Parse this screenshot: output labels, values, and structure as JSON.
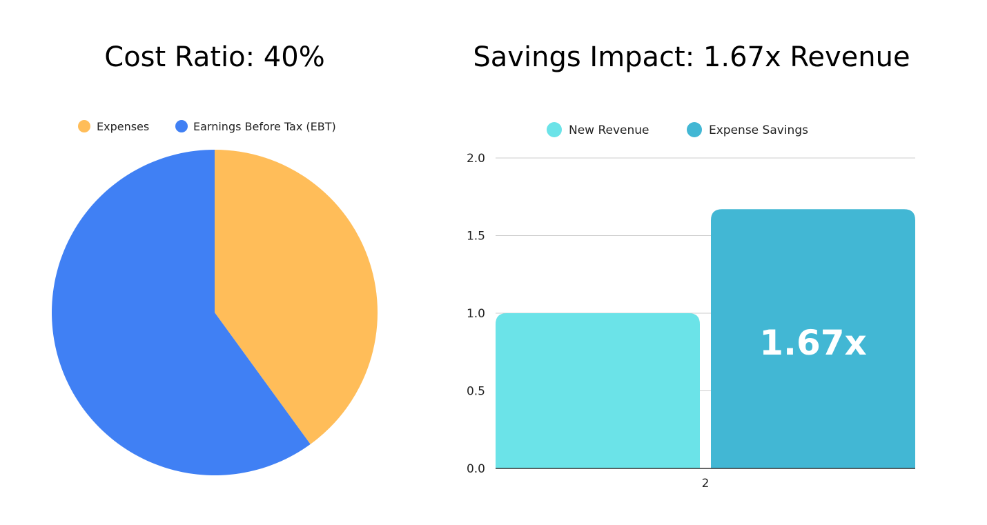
{
  "chart_data": [
    {
      "type": "pie",
      "title": "Cost Ratio: 40%",
      "legend_position": "top",
      "slices": [
        {
          "label": "Expenses",
          "value": 40,
          "color": "#FFBD59"
        },
        {
          "label": "Earnings Before Tax (EBT)",
          "value": 60,
          "color": "#4080F4"
        }
      ]
    },
    {
      "type": "bar",
      "title": "Savings Impact: 1.67x Revenue",
      "legend_position": "top",
      "categories": [
        "2"
      ],
      "series": [
        {
          "name": "New Revenue",
          "values": [
            1.0
          ],
          "color": "#6BE3E8"
        },
        {
          "name": "Expense Savings",
          "values": [
            1.67
          ],
          "color": "#42B7D4",
          "data_label": "1.67x"
        }
      ],
      "ylim": [
        0,
        2
      ],
      "yticks": [
        0.0,
        0.5,
        1.0,
        1.5,
        2.0
      ],
      "ytick_labels": [
        "0.0",
        "0.5",
        "1.0",
        "1.5",
        "2.0"
      ],
      "grid": true
    }
  ]
}
